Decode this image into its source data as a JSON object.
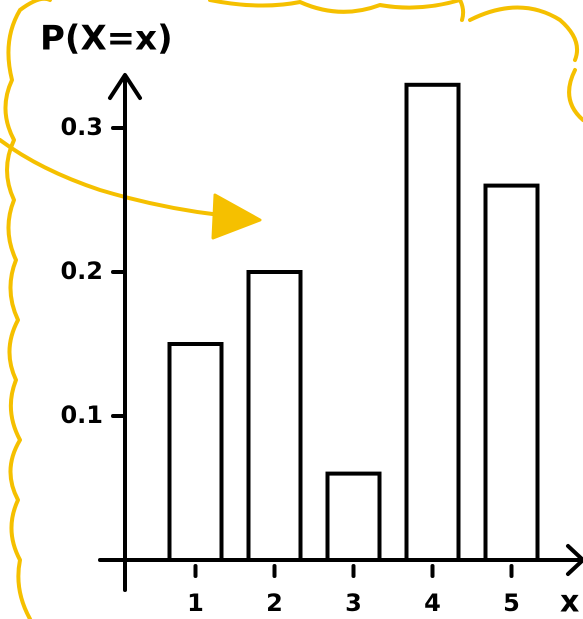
{
  "chart_data": {
    "type": "bar",
    "title": "P(X=x)",
    "x_label": "x",
    "categories": [
      "1",
      "2",
      "3",
      "4",
      "5"
    ],
    "values": [
      0.15,
      0.2,
      0.06,
      0.33,
      0.26
    ],
    "color": "#ffffff",
    "ylim": [
      0,
      0.35
    ],
    "yticks": [
      0.1,
      0.2,
      0.3
    ]
  }
}
